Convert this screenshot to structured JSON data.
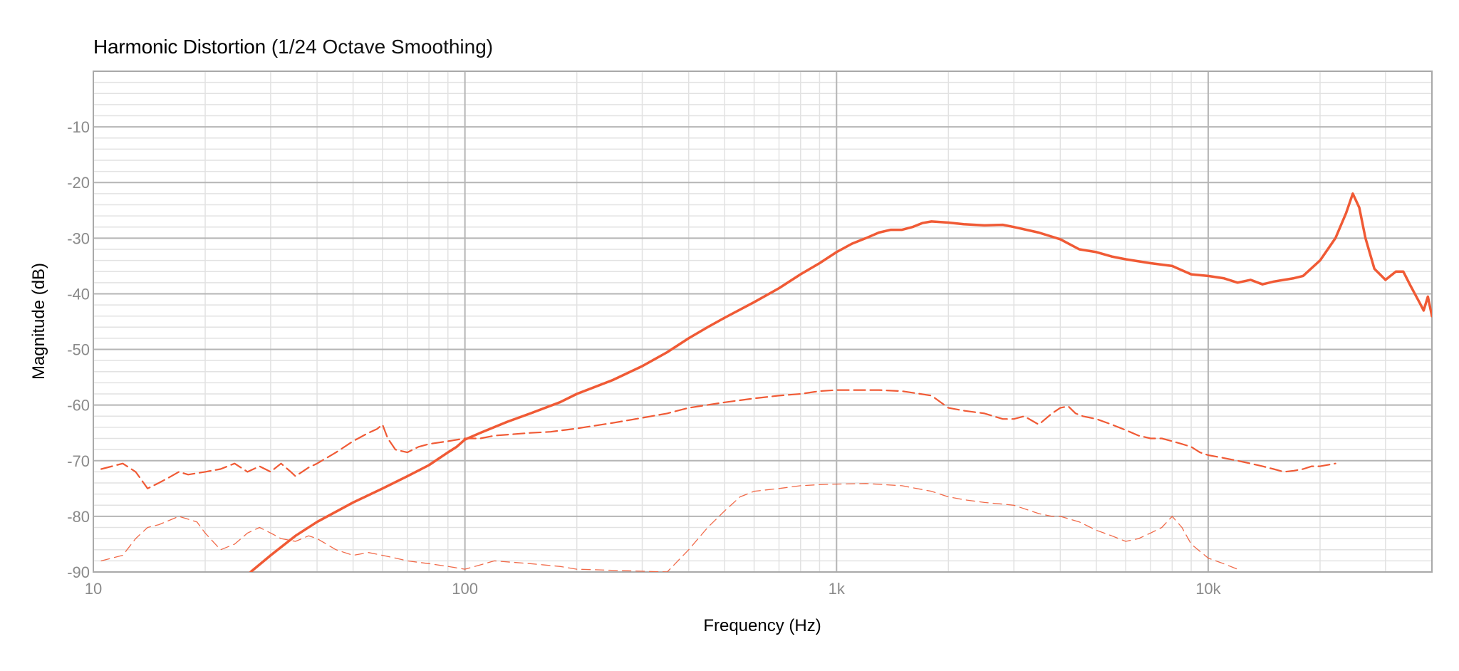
{
  "chart_data": {
    "type": "line",
    "title": "Harmonic Distortion",
    "subtitle": "(1/24 Octave Smoothing)",
    "xlabel": "Frequency (Hz)",
    "ylabel": "Magnitude (dB)",
    "xscale": "log",
    "xlim": [
      10,
      40000
    ],
    "ylim": [
      -90,
      0
    ],
    "grid": true,
    "legend": "none",
    "x_ticks": [
      {
        "value": 10,
        "label": "10"
      },
      {
        "value": 100,
        "label": "100"
      },
      {
        "value": 1000,
        "label": "1k"
      },
      {
        "value": 10000,
        "label": "10k"
      }
    ],
    "y_ticks": [
      {
        "value": -10,
        "label": "-10"
      },
      {
        "value": -20,
        "label": "-20"
      },
      {
        "value": -30,
        "label": "-30"
      },
      {
        "value": -40,
        "label": "-40"
      },
      {
        "value": -50,
        "label": "-50"
      },
      {
        "value": -60,
        "label": "-60"
      },
      {
        "value": -70,
        "label": "-70"
      },
      {
        "value": -80,
        "label": "-80"
      },
      {
        "value": -90,
        "label": "-90"
      }
    ],
    "colors": {
      "line": "#f05a35",
      "grid_major": "#b5b5b5",
      "grid_minor": "#e2e2e2",
      "frame": "#a9a9a9"
    },
    "series": [
      {
        "style": "solid",
        "points": [
          [
            26.5,
            -90
          ],
          [
            30,
            -87
          ],
          [
            35,
            -83.5
          ],
          [
            40,
            -81
          ],
          [
            50,
            -77.5
          ],
          [
            60,
            -75
          ],
          [
            70,
            -72.8
          ],
          [
            80,
            -70.8
          ],
          [
            90,
            -68.5
          ],
          [
            95,
            -67.5
          ],
          [
            100,
            -66.2
          ],
          [
            110,
            -65
          ],
          [
            130,
            -63
          ],
          [
            150,
            -61.5
          ],
          [
            180,
            -59.5
          ],
          [
            200,
            -58
          ],
          [
            250,
            -55.5
          ],
          [
            300,
            -53
          ],
          [
            350,
            -50.5
          ],
          [
            400,
            -48
          ],
          [
            450,
            -46
          ],
          [
            500,
            -44.3
          ],
          [
            600,
            -41.5
          ],
          [
            700,
            -39
          ],
          [
            800,
            -36.5
          ],
          [
            900,
            -34.5
          ],
          [
            1000,
            -32.5
          ],
          [
            1100,
            -31
          ],
          [
            1200,
            -30
          ],
          [
            1300,
            -29
          ],
          [
            1400,
            -28.5
          ],
          [
            1500,
            -28.5
          ],
          [
            1600,
            -28
          ],
          [
            1700,
            -27.3
          ],
          [
            1800,
            -27
          ],
          [
            2000,
            -27.2
          ],
          [
            2200,
            -27.5
          ],
          [
            2500,
            -27.7
          ],
          [
            2800,
            -27.6
          ],
          [
            3000,
            -28
          ],
          [
            3500,
            -29
          ],
          [
            4000,
            -30.2
          ],
          [
            4500,
            -32
          ],
          [
            5000,
            -32.5
          ],
          [
            5500,
            -33.3
          ],
          [
            6000,
            -33.8
          ],
          [
            7000,
            -34.5
          ],
          [
            8000,
            -35
          ],
          [
            9000,
            -36.5
          ],
          [
            10000,
            -36.8
          ],
          [
            11000,
            -37.2
          ],
          [
            12000,
            -38
          ],
          [
            13000,
            -37.5
          ],
          [
            14000,
            -38.3
          ],
          [
            15000,
            -37.8
          ],
          [
            16000,
            -37.5
          ],
          [
            17000,
            -37.2
          ],
          [
            18000,
            -36.8
          ],
          [
            20000,
            -34
          ],
          [
            22000,
            -30
          ],
          [
            23500,
            -25.5
          ],
          [
            24500,
            -22
          ],
          [
            25500,
            -24.5
          ],
          [
            26500,
            -30
          ],
          [
            28000,
            -35.5
          ],
          [
            30000,
            -37.5
          ],
          [
            32000,
            -36
          ],
          [
            33500,
            -36
          ],
          [
            35000,
            -38.5
          ],
          [
            37000,
            -41.5
          ],
          [
            38000,
            -43
          ],
          [
            39000,
            -40.5
          ],
          [
            40000,
            -44
          ]
        ]
      },
      {
        "style": "dashed",
        "points": [
          [
            10.5,
            -71.5
          ],
          [
            12,
            -70.5
          ],
          [
            13,
            -72
          ],
          [
            14,
            -75
          ],
          [
            15,
            -74
          ],
          [
            16,
            -73
          ],
          [
            17,
            -72
          ],
          [
            18,
            -72.5
          ],
          [
            20,
            -72
          ],
          [
            22,
            -71.5
          ],
          [
            24,
            -70.5
          ],
          [
            26,
            -72
          ],
          [
            28,
            -71
          ],
          [
            30,
            -72
          ],
          [
            32,
            -70.5
          ],
          [
            34,
            -72
          ],
          [
            35,
            -72.8
          ],
          [
            38,
            -71.2
          ],
          [
            40,
            -70.5
          ],
          [
            45,
            -68.5
          ],
          [
            50,
            -66.5
          ],
          [
            55,
            -65
          ],
          [
            58,
            -64.3
          ],
          [
            60,
            -63.5
          ],
          [
            62,
            -66
          ],
          [
            65,
            -68
          ],
          [
            70,
            -68.5
          ],
          [
            75,
            -67.5
          ],
          [
            80,
            -67
          ],
          [
            90,
            -66.5
          ],
          [
            100,
            -66
          ],
          [
            110,
            -66
          ],
          [
            120,
            -65.5
          ],
          [
            150,
            -65
          ],
          [
            170,
            -64.8
          ],
          [
            200,
            -64.2
          ],
          [
            250,
            -63.2
          ],
          [
            300,
            -62.3
          ],
          [
            350,
            -61.5
          ],
          [
            400,
            -60.5
          ],
          [
            500,
            -59.5
          ],
          [
            600,
            -58.8
          ],
          [
            700,
            -58.3
          ],
          [
            800,
            -58
          ],
          [
            900,
            -57.5
          ],
          [
            1000,
            -57.3
          ],
          [
            1100,
            -57.3
          ],
          [
            1300,
            -57.3
          ],
          [
            1500,
            -57.5
          ],
          [
            1800,
            -58.3
          ],
          [
            2000,
            -60.5
          ],
          [
            2200,
            -61
          ],
          [
            2500,
            -61.5
          ],
          [
            2800,
            -62.5
          ],
          [
            3000,
            -62.5
          ],
          [
            3200,
            -62
          ],
          [
            3500,
            -63.5
          ],
          [
            3800,
            -61.5
          ],
          [
            4000,
            -60.5
          ],
          [
            4200,
            -60.2
          ],
          [
            4400,
            -61.5
          ],
          [
            4600,
            -62
          ],
          [
            5000,
            -62.5
          ],
          [
            5500,
            -63.5
          ],
          [
            6000,
            -64.5
          ],
          [
            6500,
            -65.5
          ],
          [
            7000,
            -66
          ],
          [
            7500,
            -66
          ],
          [
            8000,
            -66.5
          ],
          [
            8500,
            -67
          ],
          [
            9000,
            -67.5
          ],
          [
            9500,
            -68.5
          ],
          [
            10000,
            -69
          ],
          [
            11000,
            -69.5
          ],
          [
            12000,
            -70
          ],
          [
            13000,
            -70.5
          ],
          [
            14000,
            -71
          ],
          [
            15000,
            -71.5
          ],
          [
            16000,
            -72
          ],
          [
            17000,
            -71.8
          ],
          [
            18000,
            -71.5
          ],
          [
            19000,
            -71
          ],
          [
            20000,
            -71
          ],
          [
            22000,
            -70.5
          ]
        ]
      },
      {
        "style": "dashed-thin",
        "points": [
          [
            10.5,
            -88
          ],
          [
            12,
            -87
          ],
          [
            13,
            -84
          ],
          [
            14,
            -82
          ],
          [
            15,
            -81.5
          ],
          [
            17,
            -80
          ],
          [
            19,
            -81
          ],
          [
            20,
            -83
          ],
          [
            22,
            -86
          ],
          [
            24,
            -85
          ],
          [
            26,
            -83
          ],
          [
            28,
            -82
          ],
          [
            30,
            -83
          ],
          [
            32,
            -84
          ],
          [
            35,
            -84.5
          ],
          [
            38,
            -83.5
          ],
          [
            40,
            -84
          ],
          [
            45,
            -86
          ],
          [
            50,
            -87
          ],
          [
            55,
            -86.5
          ],
          [
            60,
            -87
          ],
          [
            65,
            -87.5
          ],
          [
            70,
            -88
          ],
          [
            80,
            -88.5
          ],
          [
            90,
            -89
          ],
          [
            100,
            -89.5
          ],
          [
            120,
            -88
          ],
          [
            150,
            -88.5
          ],
          [
            180,
            -89
          ],
          [
            200,
            -89.5
          ],
          [
            350,
            -90
          ],
          [
            400,
            -86
          ],
          [
            450,
            -82
          ],
          [
            500,
            -79
          ],
          [
            550,
            -76.5
          ],
          [
            600,
            -75.5
          ],
          [
            700,
            -75
          ],
          [
            800,
            -74.5
          ],
          [
            900,
            -74.3
          ],
          [
            1000,
            -74.2
          ],
          [
            1200,
            -74.1
          ],
          [
            1500,
            -74.5
          ],
          [
            1800,
            -75.5
          ],
          [
            2000,
            -76.5
          ],
          [
            2200,
            -77
          ],
          [
            2500,
            -77.5
          ],
          [
            2800,
            -77.8
          ],
          [
            3000,
            -78
          ],
          [
            3500,
            -79.5
          ],
          [
            3800,
            -80
          ],
          [
            4000,
            -80
          ],
          [
            4500,
            -81
          ],
          [
            5000,
            -82.5
          ],
          [
            5500,
            -83.5
          ],
          [
            6000,
            -84.5
          ],
          [
            6500,
            -84
          ],
          [
            7000,
            -83
          ],
          [
            7500,
            -82
          ],
          [
            8000,
            -80
          ],
          [
            8500,
            -82
          ],
          [
            9000,
            -85
          ],
          [
            10000,
            -87.5
          ],
          [
            11000,
            -88.5
          ],
          [
            12000,
            -89.5
          ]
        ]
      }
    ]
  }
}
